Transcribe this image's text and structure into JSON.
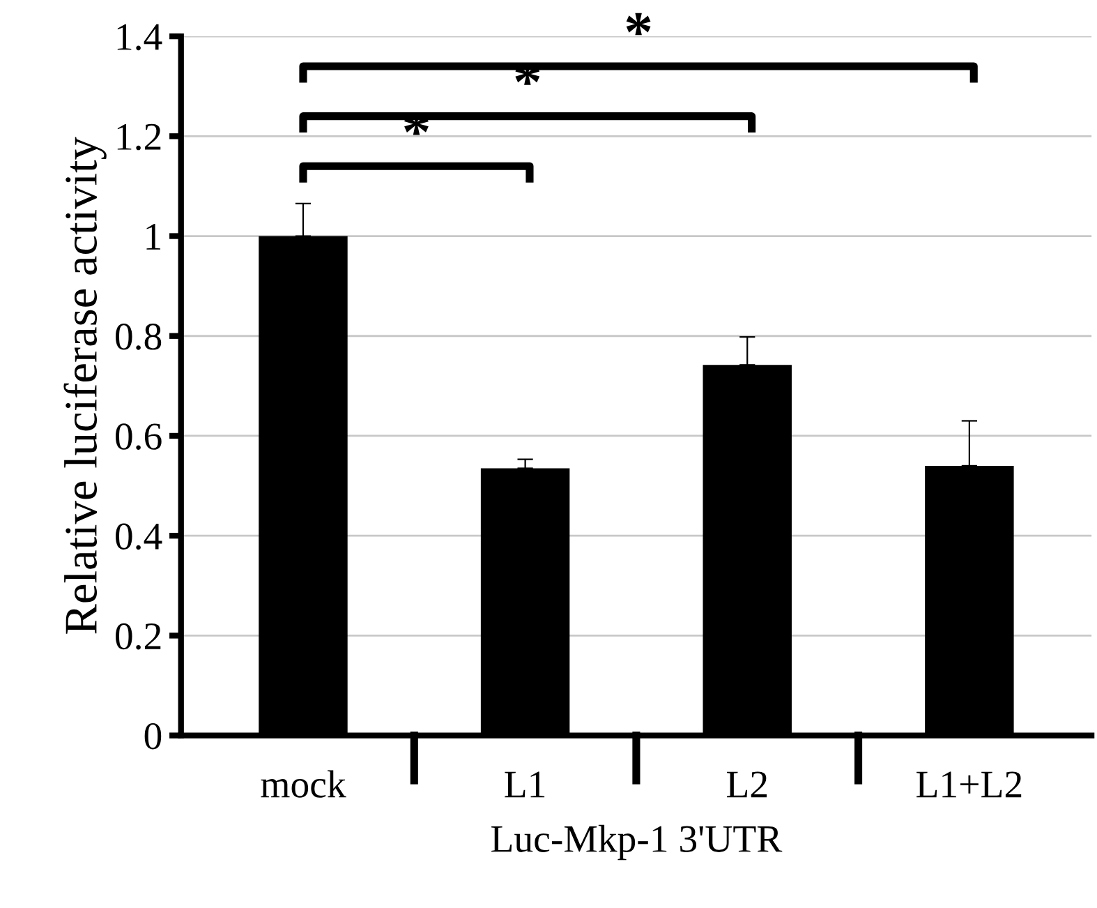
{
  "chart_data": {
    "type": "bar",
    "ylabel": "Relative luciferase activity",
    "xlabel": "Luc-Mkp-1 3'UTR",
    "categories": [
      "mock",
      "L1",
      "L2",
      "L1+L2"
    ],
    "values": [
      1.0,
      0.535,
      0.742,
      0.54
    ],
    "errors": [
      0.065,
      0.018,
      0.056,
      0.09
    ],
    "color": "#000000",
    "ylim": [
      0,
      1.4
    ],
    "yticks": [
      0,
      0.2,
      0.4,
      0.6,
      0.8,
      1,
      1.2,
      1.4
    ],
    "grid": "y",
    "annotations": [
      "*",
      "*",
      "*"
    ]
  }
}
